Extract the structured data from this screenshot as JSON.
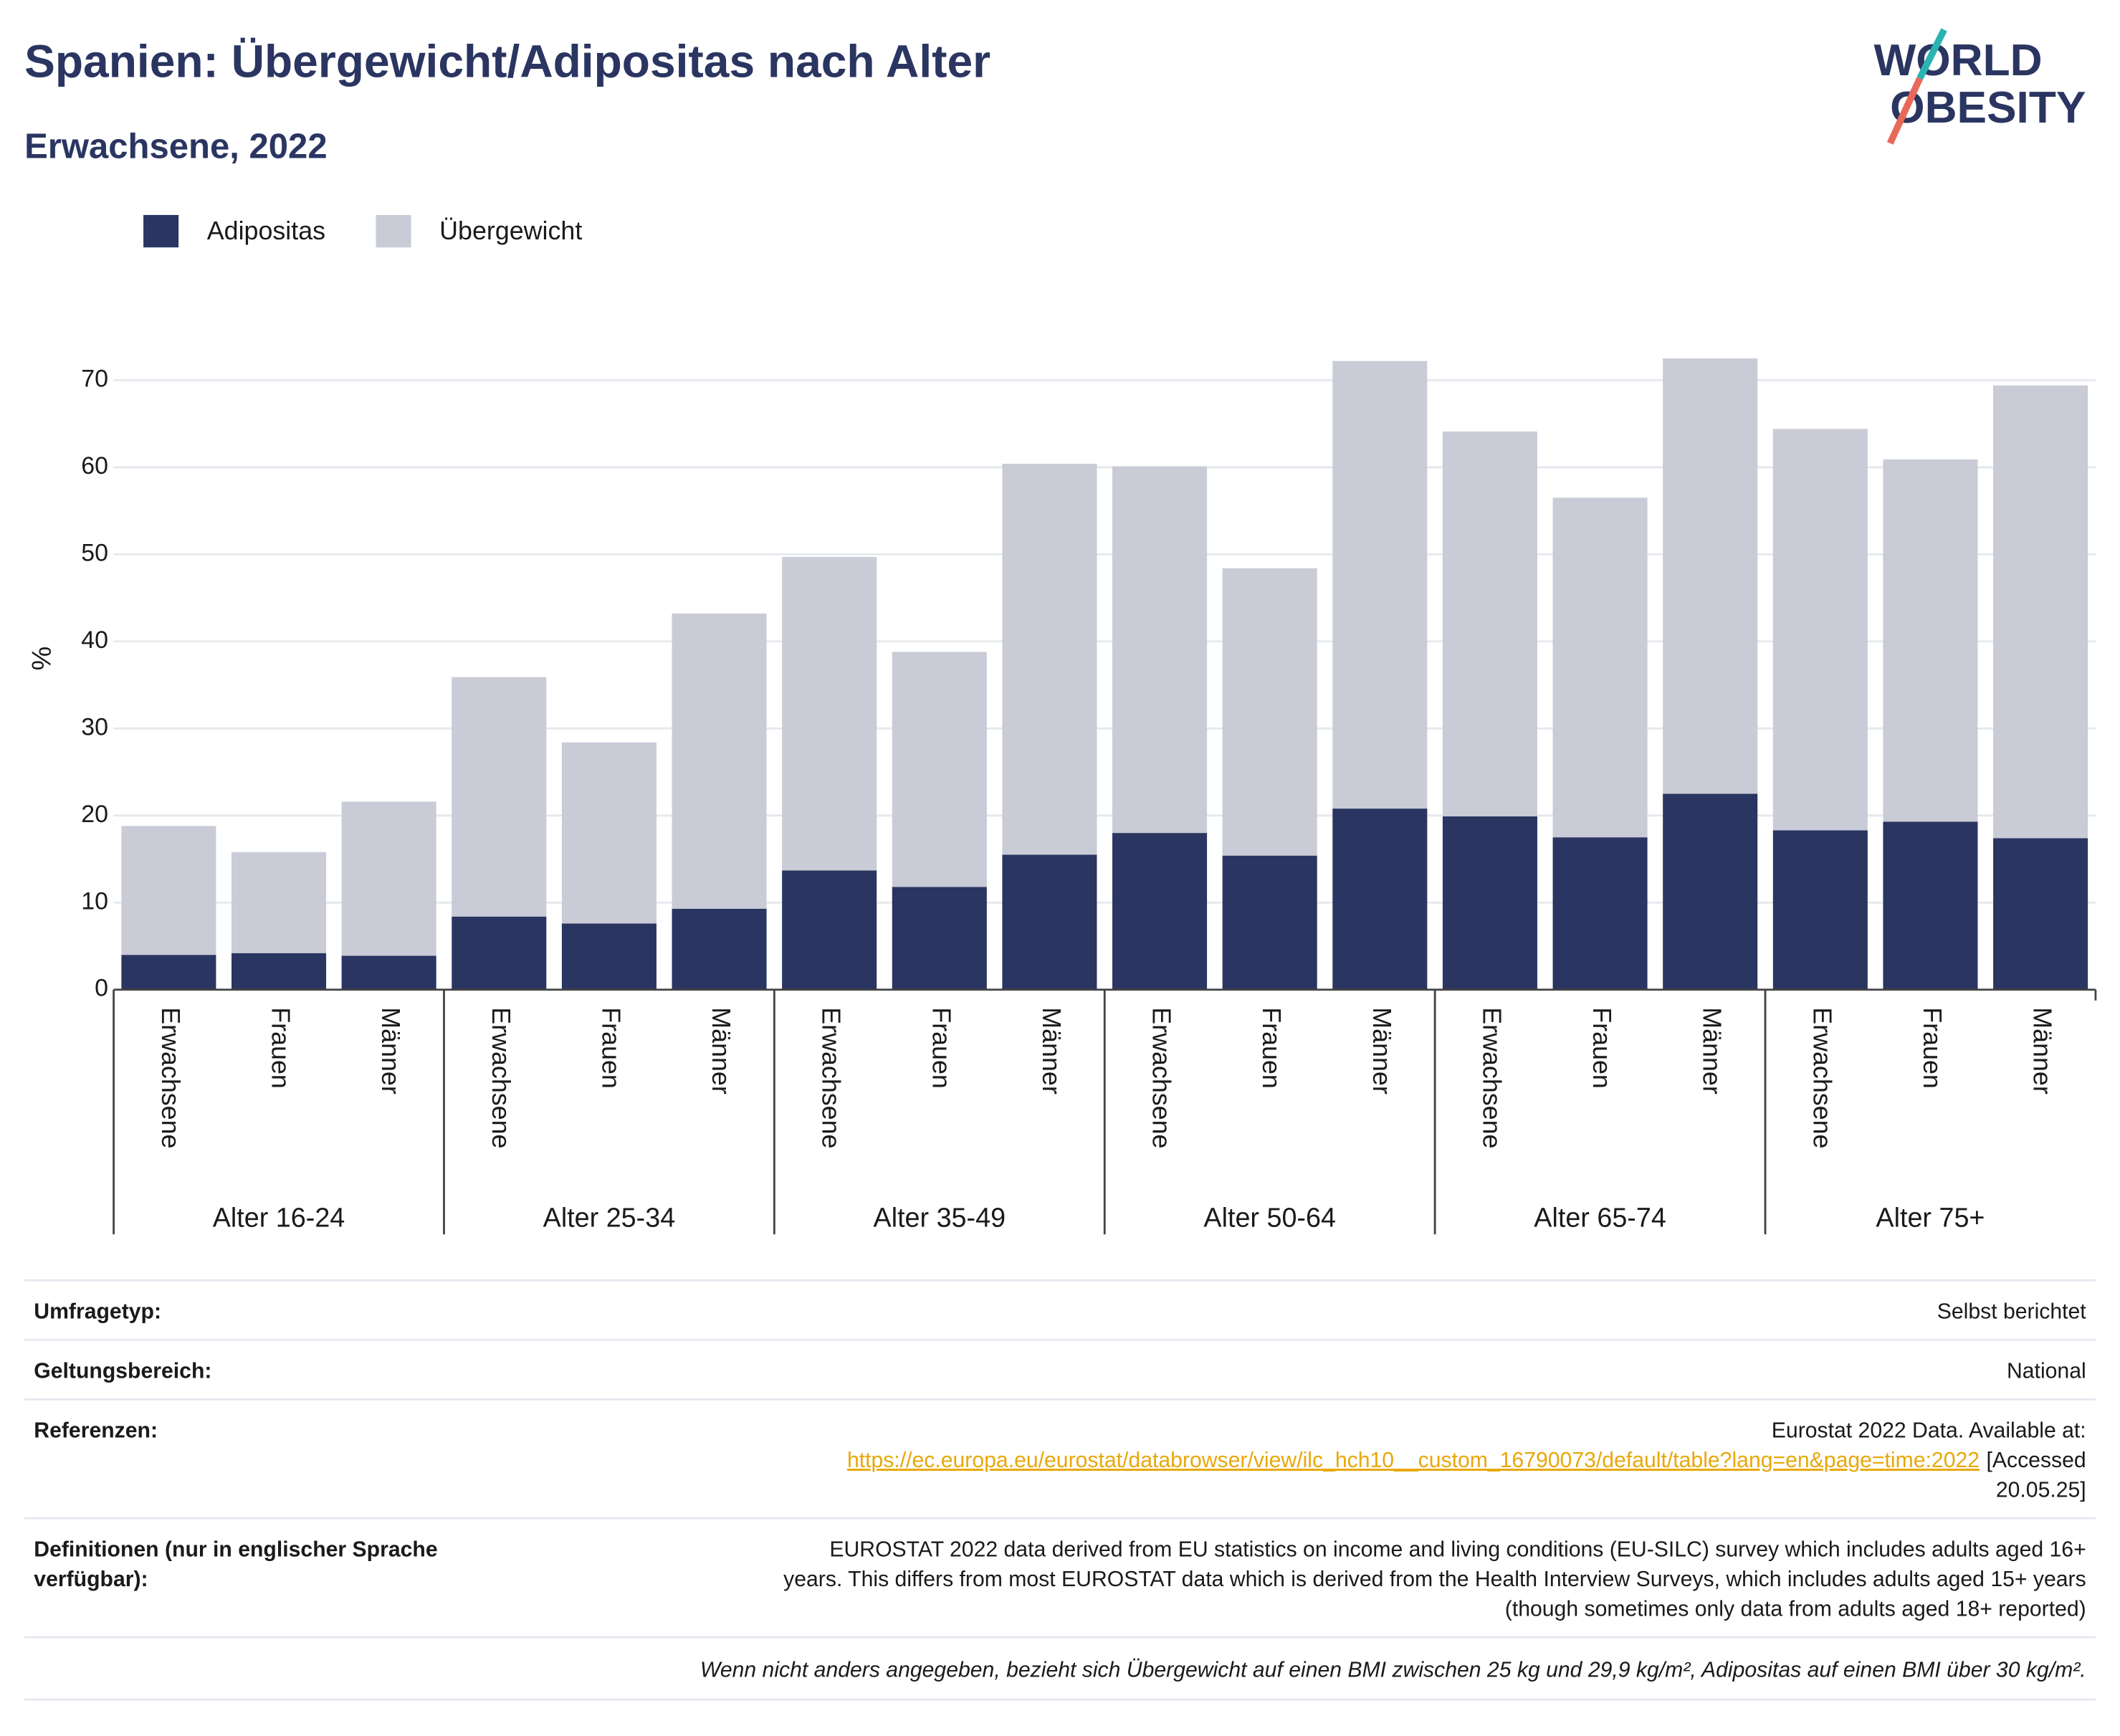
{
  "chart_data": {
    "type": "bar",
    "stacked": true,
    "title": "Spanien: Übergewicht/Adipositas nach Alter",
    "subtitle": "Erwachsene, 2022",
    "y_label": "%",
    "groups": [
      "Alter 16-24",
      "Alter 25-34",
      "Alter 35-49",
      "Alter 50-64",
      "Alter 65-74",
      "Alter 75+"
    ],
    "categories": [
      "Erwachsene",
      "Frauen",
      "Männer",
      "Erwachsene",
      "Frauen",
      "Männer",
      "Erwachsene",
      "Frauen",
      "Männer",
      "Erwachsene",
      "Frauen",
      "Männer",
      "Erwachsene",
      "Frauen",
      "Männer",
      "Erwachsene",
      "Frauen",
      "Männer"
    ],
    "series": [
      {
        "name": "Adipositas",
        "color": "#2a3561",
        "values": [
          4.0,
          4.2,
          3.9,
          8.4,
          7.6,
          9.3,
          13.7,
          11.8,
          15.5,
          18.0,
          15.4,
          20.8,
          19.9,
          17.5,
          22.5,
          18.3,
          19.3,
          17.4
        ]
      },
      {
        "name": "Übergewicht",
        "color": "#c9cbd6",
        "values": [
          14.8,
          11.6,
          17.7,
          27.5,
          20.8,
          33.9,
          36.0,
          27.0,
          44.9,
          42.1,
          33.0,
          51.4,
          44.2,
          39.0,
          50.0,
          46.1,
          41.6,
          52.0
        ]
      }
    ],
    "ylim": [
      0,
      75
    ],
    "yticks": [
      0,
      10,
      20,
      30,
      40,
      50,
      60,
      70
    ],
    "grid": true,
    "legend": "top-left"
  },
  "logo": [
    "WORLD",
    "OBESITY"
  ],
  "table": {
    "rows": [
      {
        "label": [
          "Umfragetyp:"
        ],
        "value": [
          "Selbst berichtet"
        ]
      },
      {
        "label": [
          "Geltungsbereich:"
        ],
        "value": [
          "National"
        ]
      },
      {
        "label": [
          "Referenzen:"
        ],
        "value": [
          "Eurostat 2022 Data. Available at:"
        ],
        "url": "https://ec.europa.eu/eurostat/databrowser/view/ilc_hch10__custom_16790073/default/table?lang=en&page=time:2022",
        "accessed": [
          "[Accessed",
          "20.05.25]"
        ]
      },
      {
        "label": [
          "Definitionen (nur in englischer Sprache",
          "verfügbar):"
        ],
        "value": [
          "EUROSTAT 2022 data derived from EU statistics on income and living conditions (EU-SILC) survey which includes adults aged 16+",
          "years. This differs from most EUROSTAT data which is derived from the Health Interview Surveys, which includes adults aged 15+ years",
          "(though sometimes only data from adults aged 18+ reported)"
        ]
      }
    ],
    "footnote": "Wenn nicht anders angegeben, bezieht sich Übergewicht auf einen BMI zwischen 25 kg und 29,9 kg/m², Adipositas auf einen BMI über 30 kg/m²."
  }
}
